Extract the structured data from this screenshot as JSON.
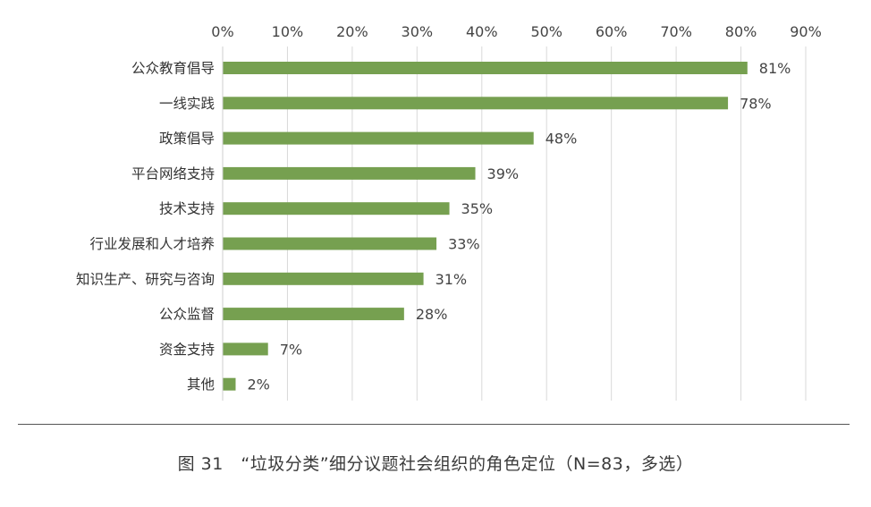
{
  "chart_data": {
    "type": "bar",
    "orientation": "horizontal",
    "categories": [
      "公众教育倡导",
      "一线实践",
      "政策倡导",
      "平台网络支持",
      "技术支持",
      "行业发展和人才培养",
      "知识生产、研究与咨询",
      "公众监督",
      "资金支持",
      "其他"
    ],
    "values": [
      81,
      78,
      48,
      39,
      35,
      33,
      31,
      28,
      7,
      2
    ],
    "value_labels": [
      "81%",
      "78%",
      "48%",
      "39%",
      "35%",
      "33%",
      "31%",
      "28%",
      "7%",
      "2%"
    ],
    "xlim": [
      0,
      90
    ],
    "x_ticks": [
      "0%",
      "10%",
      "20%",
      "30%",
      "40%",
      "50%",
      "60%",
      "70%",
      "80%",
      "90%"
    ],
    "x_axis_position": "top",
    "grid": true,
    "bar_color": "#76a050",
    "grid_color": "#d9d9d9"
  },
  "caption": "图 31　“垃圾分类”细分议题社会组织的角色定位（N=83，多选）"
}
